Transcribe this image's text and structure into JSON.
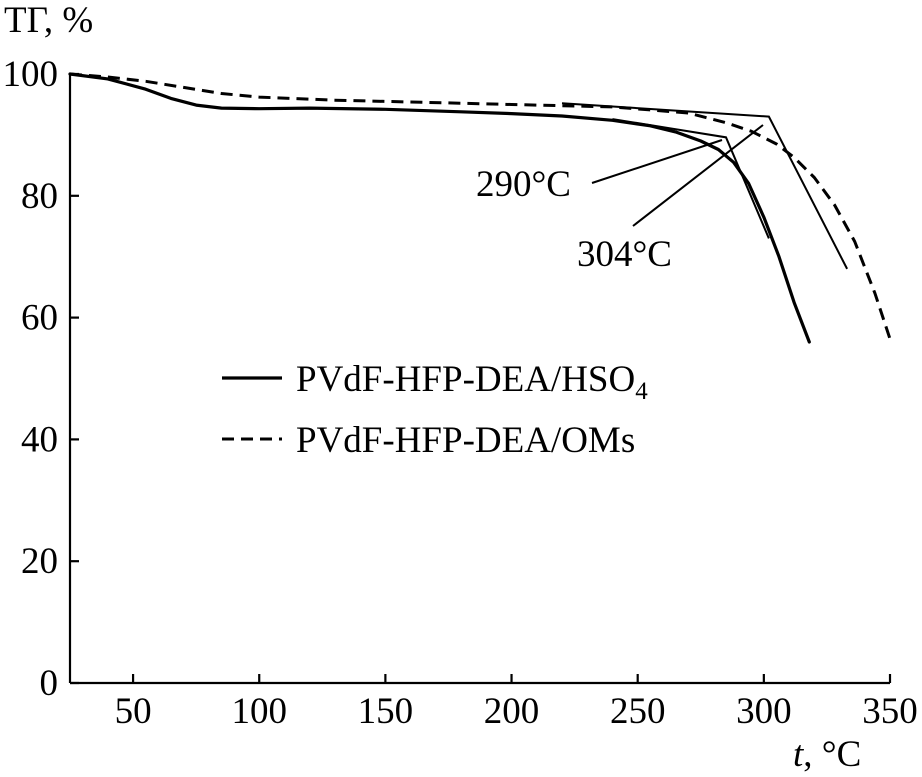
{
  "chart_data": {
    "type": "line",
    "title": "",
    "ylabel": "ТГ, %",
    "xlabel_italic": "t",
    "xlabel_rest": ", °C",
    "xlim": [
      25,
      350
    ],
    "ylim": [
      0,
      100
    ],
    "x_ticks": [
      50,
      100,
      150,
      200,
      250,
      300,
      350
    ],
    "y_ticks": [
      0,
      20,
      40,
      60,
      80,
      100
    ],
    "grid": false,
    "legend_position": "center-left",
    "series": [
      {
        "name": "PVdF-HFP-DEA/HSO",
        "name_subscript": "4",
        "style": "solid",
        "color": "#000000",
        "x": [
          25,
          40,
          55,
          65,
          75,
          85,
          100,
          120,
          150,
          180,
          200,
          220,
          240,
          255,
          265,
          275,
          282,
          288,
          294,
          300,
          306,
          312,
          318
        ],
        "y": [
          100,
          99.2,
          97.5,
          96.0,
          94.9,
          94.4,
          94.3,
          94.4,
          94.2,
          93.8,
          93.5,
          93.1,
          92.4,
          91.5,
          90.5,
          89.0,
          87.6,
          85.5,
          82.0,
          76.5,
          70.0,
          62.5,
          56.0
        ]
      },
      {
        "name": "PVdF-HFP-DEA/OMs",
        "style": "dashed",
        "color": "#000000",
        "x": [
          25,
          40,
          55,
          70,
          85,
          100,
          130,
          160,
          200,
          240,
          270,
          285,
          295,
          305,
          312,
          320,
          328,
          336,
          344,
          350
        ],
        "y": [
          100,
          99.5,
          98.8,
          97.8,
          96.8,
          96.2,
          95.7,
          95.4,
          95.0,
          94.6,
          93.6,
          92.0,
          90.6,
          88.5,
          86.3,
          83.0,
          78.5,
          72.5,
          64.0,
          56.5
        ]
      }
    ],
    "annotations": [
      {
        "text": "290°C"
      },
      {
        "text": "304°C"
      }
    ]
  }
}
